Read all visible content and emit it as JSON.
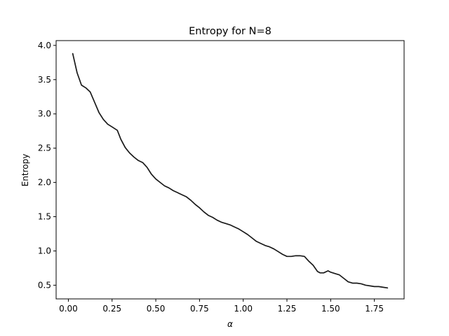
{
  "chart_data": {
    "type": "line",
    "title": "Entropy for N=8",
    "xlabel": "α",
    "ylabel": "Entropy",
    "xlim": [
      -0.07,
      1.92
    ],
    "ylim": [
      0.3,
      4.07
    ],
    "grid": false,
    "x_ticks": [
      0.0,
      0.25,
      0.5,
      0.75,
      1.0,
      1.25,
      1.5,
      1.75
    ],
    "x_tick_labels": [
      "0.00",
      "0.25",
      "0.50",
      "0.75",
      "1.00",
      "1.25",
      "1.50",
      "1.75"
    ],
    "y_ticks": [
      0.5,
      1.0,
      1.5,
      2.0,
      2.5,
      3.0,
      3.5,
      4.0
    ],
    "y_tick_labels": [
      "0.5",
      "1.0",
      "1.5",
      "2.0",
      "2.5",
      "3.0",
      "3.5",
      "4.0"
    ],
    "line_color": "#1a1a1a",
    "series": [
      {
        "x": [
          0.025,
          0.05,
          0.075,
          0.1,
          0.125,
          0.15,
          0.175,
          0.2,
          0.225,
          0.25,
          0.28,
          0.3,
          0.325,
          0.35,
          0.375,
          0.4,
          0.425,
          0.45,
          0.475,
          0.5,
          0.525,
          0.55,
          0.575,
          0.6,
          0.625,
          0.65,
          0.675,
          0.7,
          0.725,
          0.75,
          0.775,
          0.8,
          0.825,
          0.85,
          0.875,
          0.9,
          0.925,
          0.95,
          0.975,
          1.0,
          1.025,
          1.05,
          1.075,
          1.1,
          1.125,
          1.15,
          1.175,
          1.2,
          1.225,
          1.25,
          1.275,
          1.3,
          1.325,
          1.35,
          1.375,
          1.4,
          1.425,
          1.44,
          1.46,
          1.485,
          1.5,
          1.525,
          1.55,
          1.575,
          1.6,
          1.625,
          1.65,
          1.675,
          1.7,
          1.725,
          1.75,
          1.775,
          1.8,
          1.825
        ],
        "y": [
          3.88,
          3.6,
          3.42,
          3.38,
          3.32,
          3.17,
          3.02,
          2.92,
          2.85,
          2.81,
          2.76,
          2.63,
          2.51,
          2.43,
          2.37,
          2.32,
          2.29,
          2.22,
          2.12,
          2.05,
          2.0,
          1.95,
          1.92,
          1.88,
          1.85,
          1.82,
          1.79,
          1.74,
          1.68,
          1.63,
          1.57,
          1.52,
          1.49,
          1.45,
          1.42,
          1.4,
          1.38,
          1.35,
          1.32,
          1.28,
          1.24,
          1.19,
          1.14,
          1.11,
          1.08,
          1.06,
          1.03,
          0.99,
          0.95,
          0.92,
          0.92,
          0.93,
          0.93,
          0.92,
          0.85,
          0.79,
          0.7,
          0.68,
          0.68,
          0.71,
          0.69,
          0.67,
          0.65,
          0.6,
          0.55,
          0.53,
          0.53,
          0.52,
          0.5,
          0.49,
          0.48,
          0.48,
          0.47,
          0.46
        ]
      }
    ]
  }
}
